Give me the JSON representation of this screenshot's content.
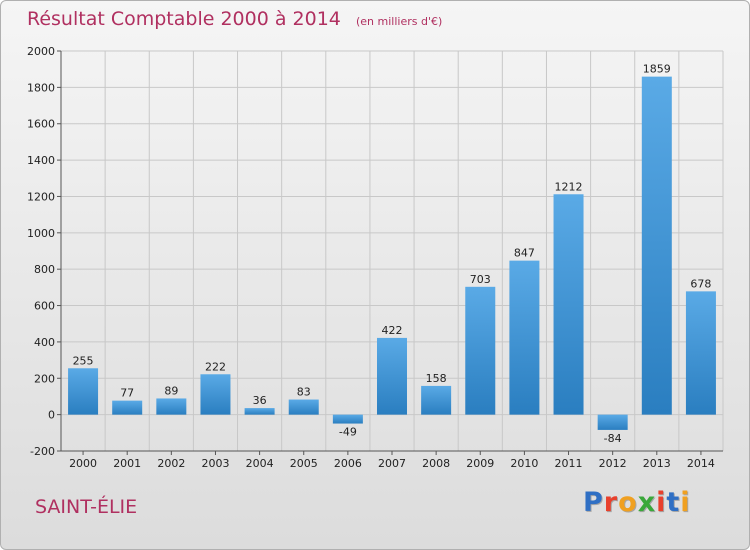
{
  "title": "Résultat Comptable 2000 à 2014",
  "subtitle": "(en milliers d'€)",
  "place": "SAINT-ÉLIE",
  "logo": {
    "letters": [
      "P",
      "r",
      "o",
      "x",
      "i",
      "t",
      "i"
    ],
    "colors": [
      "#2f6fc4",
      "#e8402c",
      "#f0a020",
      "#3aa83a",
      "#e8402c",
      "#2f6fc4",
      "#f0a020"
    ]
  },
  "colors": {
    "title": "#b03060",
    "bar_light": "#5aaae6",
    "bar_dark": "#2a7ec0",
    "grid": "#c8c8c8"
  },
  "chart_data": {
    "type": "bar",
    "categories": [
      "2000",
      "2001",
      "2002",
      "2003",
      "2004",
      "2005",
      "2006",
      "2007",
      "2008",
      "2009",
      "2010",
      "2011",
      "2012",
      "2013",
      "2014"
    ],
    "values": [
      255,
      77,
      89,
      222,
      36,
      83,
      -49,
      422,
      158,
      703,
      847,
      1212,
      -84,
      1859,
      678
    ],
    "ylim": [
      -200,
      2000
    ],
    "yticks": [
      -200,
      0,
      200,
      400,
      600,
      800,
      1000,
      1200,
      1400,
      1600,
      1800,
      2000
    ],
    "grid": true,
    "xlabel": "",
    "ylabel": ""
  }
}
